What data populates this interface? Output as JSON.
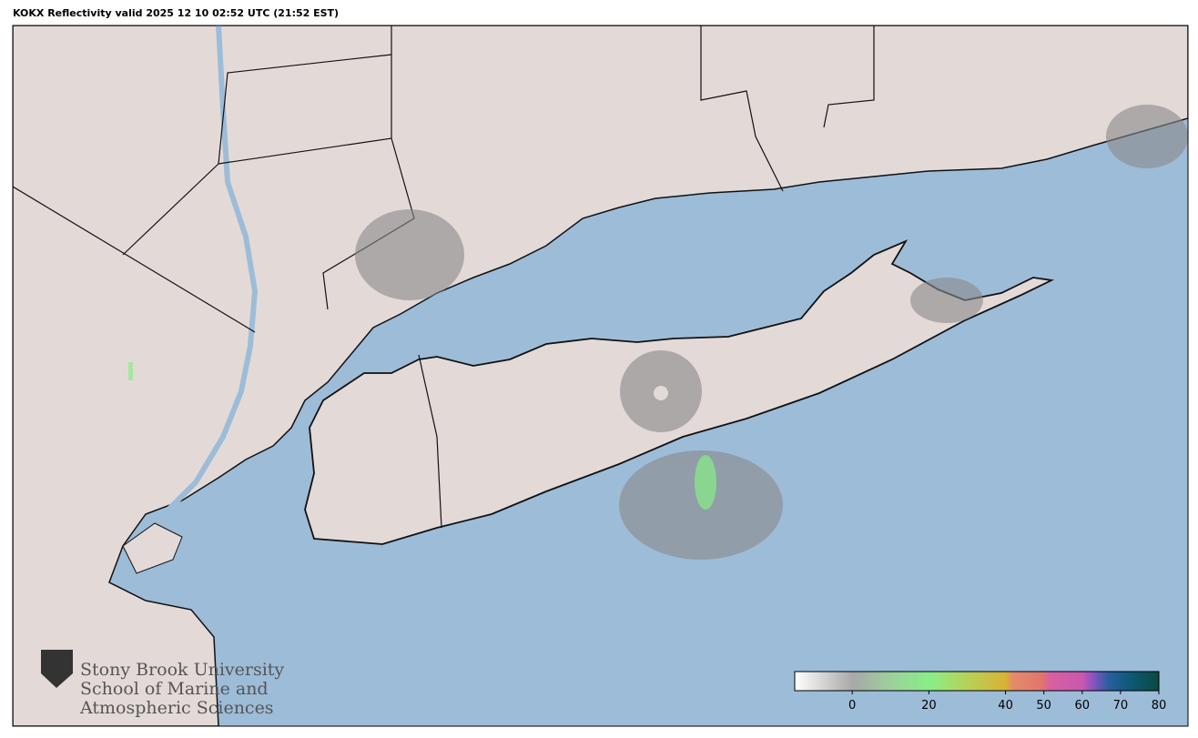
{
  "title": "KOKX Reflectivity valid 2025 12 10 02:52 UTC (21:52 EST)",
  "logo": {
    "line1": "Stony Brook University",
    "line2": "School of Marine and",
    "line3": "Atmospheric Sciences"
  },
  "colorbar": {
    "range": [
      -15,
      80
    ],
    "ticks": [
      0,
      20,
      40,
      50,
      60,
      70,
      80
    ]
  }
}
